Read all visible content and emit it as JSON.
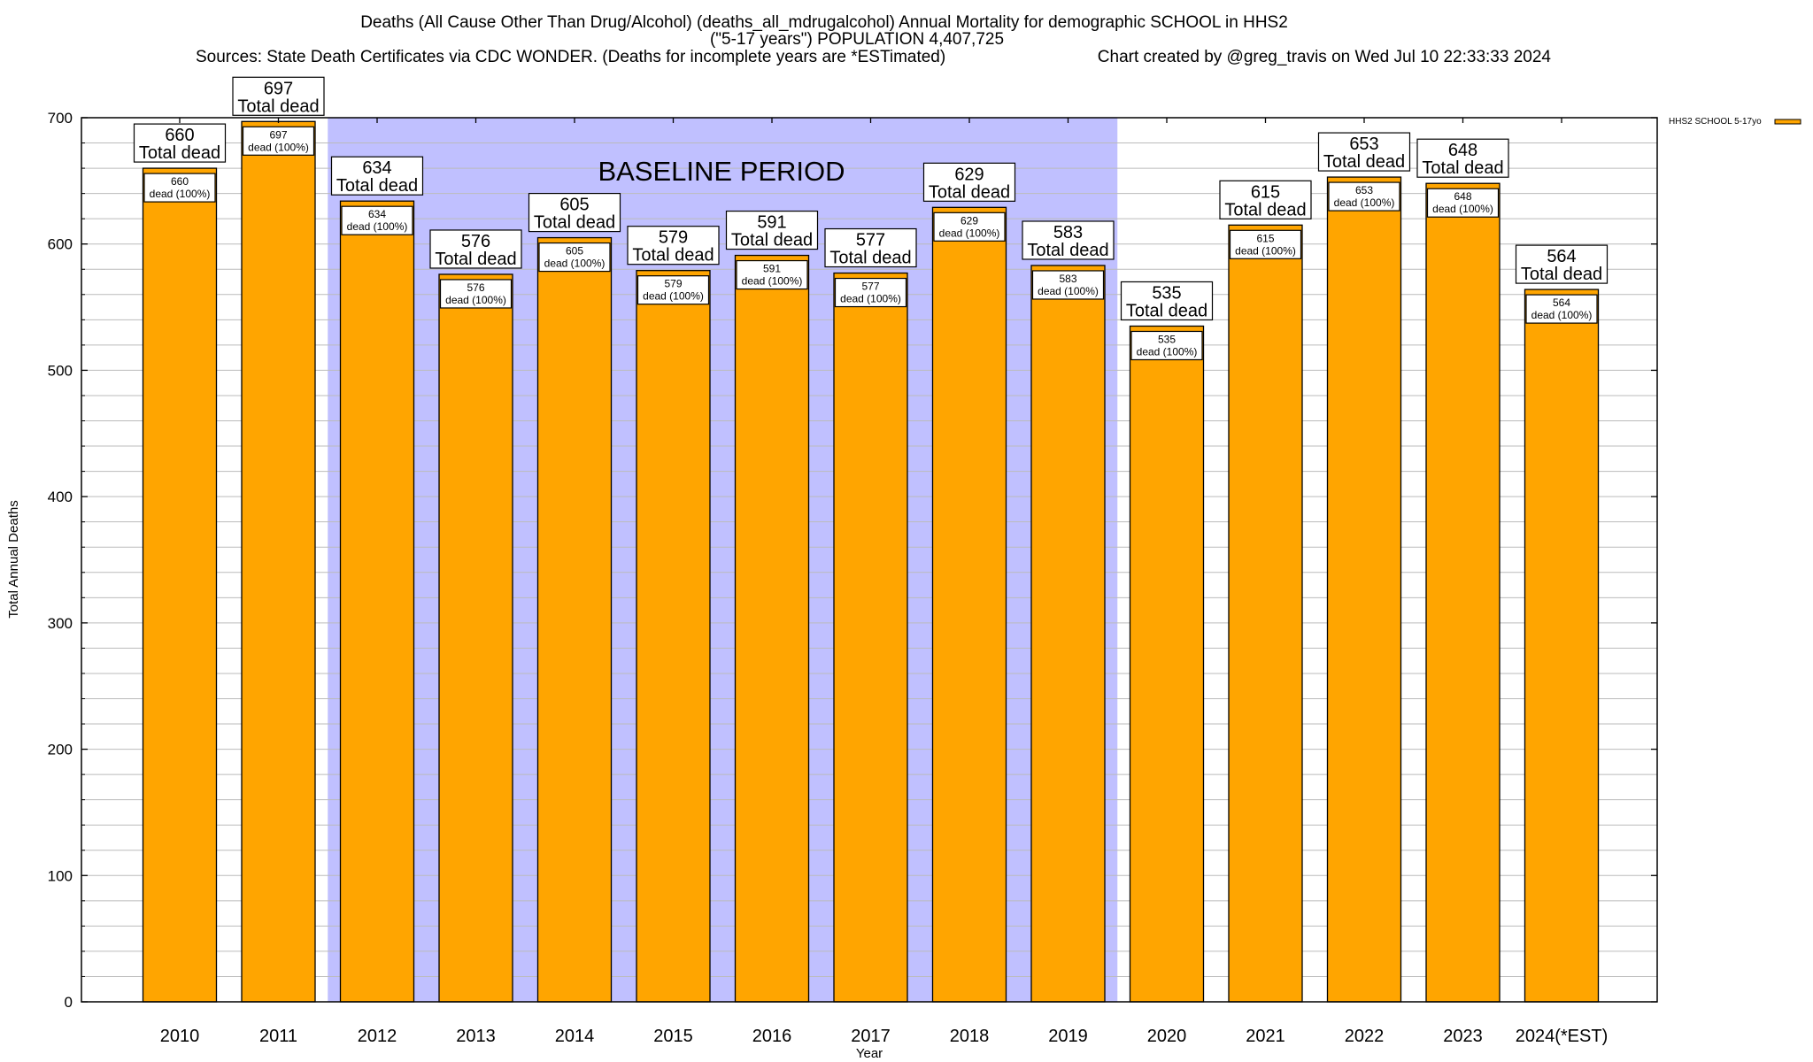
{
  "chart_data": {
    "type": "bar",
    "title_lines": [
      "Deaths (All Cause Other Than Drug/Alcohol) (deaths_all_mdrugalcohol) Annual Mortality for demographic SCHOOL in HHS2",
      "(\"5-17 years\") POPULATION 4,407,725"
    ],
    "sources": "Sources: State Death Certificates via CDC WONDER. (Deaths for incomplete years are *ESTimated)",
    "credit": "Chart created by @greg_travis on Wed Jul 10 22:33:33 2024",
    "xlabel": "Year",
    "ylabel": "Total Annual Deaths",
    "ylim": [
      0,
      700
    ],
    "y_major_step": 100,
    "y_minor_step": 20,
    "yticks": [
      "0",
      "100",
      "200",
      "300",
      "400",
      "500",
      "600",
      "700"
    ],
    "grid": true,
    "legend_position": "top-right",
    "categories": [
      "2010",
      "2011",
      "2012",
      "2013",
      "2014",
      "2015",
      "2016",
      "2017",
      "2018",
      "2019",
      "2020",
      "2021",
      "2022",
      "2023",
      "2024(*EST)"
    ],
    "series": [
      {
        "name": "HHS2 SCHOOL 5-17yo",
        "color": "#FFA500",
        "values": [
          660,
          697,
          634,
          576,
          605,
          579,
          591,
          577,
          629,
          583,
          535,
          615,
          653,
          648,
          564
        ]
      }
    ],
    "total_label_suffix": "Total dead",
    "segment_label_suffix": "dead (100%)",
    "baseline_period": {
      "label": "BASELINE PERIOD",
      "from_category": "2012",
      "to_category": "2019",
      "color": "#C0C0FF"
    }
  }
}
